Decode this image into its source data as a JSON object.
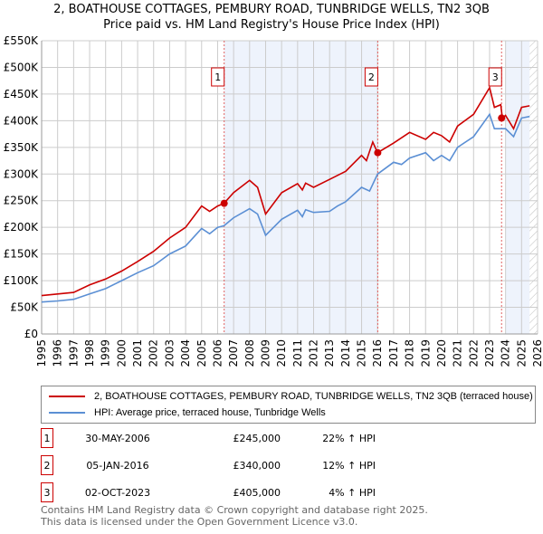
{
  "chart_data": {
    "type": "line",
    "title": "2, BOATHOUSE COTTAGES, PEMBURY ROAD, TUNBRIDGE WELLS, TN2 3QB",
    "subtitle": "Price paid vs. HM Land Registry's House Price Index (HPI)",
    "xlim": [
      1995,
      2026
    ],
    "ylim": [
      0,
      550000
    ],
    "yticks": [
      0,
      50000,
      100000,
      150000,
      200000,
      250000,
      300000,
      350000,
      400000,
      450000,
      500000,
      550000
    ],
    "ytick_labels": [
      "£0",
      "£50K",
      "£100K",
      "£150K",
      "£200K",
      "£250K",
      "£300K",
      "£350K",
      "£400K",
      "£450K",
      "£500K",
      "£550K"
    ],
    "xticks": [
      "1995",
      "1996",
      "1997",
      "1998",
      "1999",
      "2000",
      "2001",
      "2002",
      "2003",
      "2004",
      "2005",
      "2006",
      "2007",
      "2008",
      "2009",
      "2010",
      "2011",
      "2012",
      "2013",
      "2014",
      "2015",
      "2016",
      "2017",
      "2018",
      "2019",
      "2020",
      "2021",
      "2022",
      "2023",
      "2024",
      "2025",
      "2026"
    ],
    "grid": true,
    "series": [
      {
        "name": "2, BOATHOUSE COTTAGES, PEMBURY ROAD, TUNBRIDGE WELLS, TN2 3QB (terraced house)",
        "color": "#cc0000",
        "x": [
          1995,
          1996,
          1997,
          1998,
          1999,
          2000,
          2001,
          2002,
          2003,
          2004,
          2005,
          2005.5,
          2006,
          2006.4,
          2007,
          2008,
          2008.5,
          2009,
          2010,
          2011,
          2011.3,
          2011.5,
          2012,
          2013,
          2014,
          2015,
          2015.3,
          2015.7,
          2016,
          2017,
          2018,
          2019,
          2019.5,
          2020,
          2020.5,
          2021,
          2022,
          2023,
          2023.3,
          2023.7,
          2023.8,
          2024,
          2024.5,
          2025,
          2025.5
        ],
        "y": [
          72000,
          75000,
          78000,
          92000,
          103000,
          118000,
          136000,
          155000,
          180000,
          200000,
          240000,
          230000,
          240000,
          245000,
          265000,
          288000,
          275000,
          225000,
          265000,
          282000,
          270000,
          283000,
          275000,
          290000,
          305000,
          335000,
          325000,
          360000,
          340000,
          358000,
          378000,
          365000,
          378000,
          372000,
          360000,
          390000,
          412000,
          462000,
          425000,
          430000,
          405000,
          410000,
          385000,
          425000,
          428000
        ]
      },
      {
        "name": "HPI: Average price, terraced house, Tunbridge Wells",
        "color": "#5b8fd4",
        "x": [
          1995,
          1996,
          1997,
          1998,
          1999,
          2000,
          2001,
          2002,
          2003,
          2004,
          2005,
          2005.5,
          2006,
          2006.4,
          2007,
          2008,
          2008.5,
          2009,
          2010,
          2011,
          2011.3,
          2011.5,
          2012,
          2013,
          2013.5,
          2014,
          2015,
          2015.5,
          2016,
          2017,
          2017.5,
          2018,
          2019,
          2019.5,
          2020,
          2020.5,
          2021,
          2022,
          2023,
          2023.3,
          2024,
          2024.5,
          2025,
          2025.5
        ],
        "y": [
          60000,
          62000,
          65000,
          75000,
          85000,
          100000,
          115000,
          128000,
          150000,
          165000,
          198000,
          188000,
          200000,
          203000,
          218000,
          235000,
          225000,
          185000,
          215000,
          232000,
          220000,
          233000,
          228000,
          230000,
          240000,
          248000,
          275000,
          268000,
          300000,
          322000,
          318000,
          330000,
          340000,
          325000,
          335000,
          325000,
          350000,
          370000,
          412000,
          385000,
          385000,
          370000,
          405000,
          408000
        ]
      }
    ],
    "sales": [
      {
        "label": "1",
        "x": 2006.41,
        "y": 245000
      },
      {
        "label": "2",
        "x": 2016.01,
        "y": 340000
      },
      {
        "label": "3",
        "x": 2023.75,
        "y": 405000
      }
    ],
    "shaded_ranges": [
      [
        2006.41,
        2016.01
      ],
      [
        2024.0,
        2025.5
      ]
    ],
    "hatched_from": 2025.5
  },
  "legend": {
    "red": "2, BOATHOUSE COTTAGES, PEMBURY ROAD, TUNBRIDGE WELLS, TN2 3QB (terraced house)",
    "blue": "HPI: Average price, terraced house, Tunbridge Wells"
  },
  "transactions": [
    {
      "num": "1",
      "date": "30-MAY-2006",
      "price": "£245,000",
      "hpi": "22% ↑ HPI"
    },
    {
      "num": "2",
      "date": "05-JAN-2016",
      "price": "£340,000",
      "hpi": "12% ↑ HPI"
    },
    {
      "num": "3",
      "date": "02-OCT-2023",
      "price": "£405,000",
      "hpi": "4% ↑ HPI"
    }
  ],
  "footer": {
    "line1": "Contains HM Land Registry data © Crown copyright and database right 2025.",
    "line2": "This data is licensed under the Open Government Licence v3.0."
  }
}
